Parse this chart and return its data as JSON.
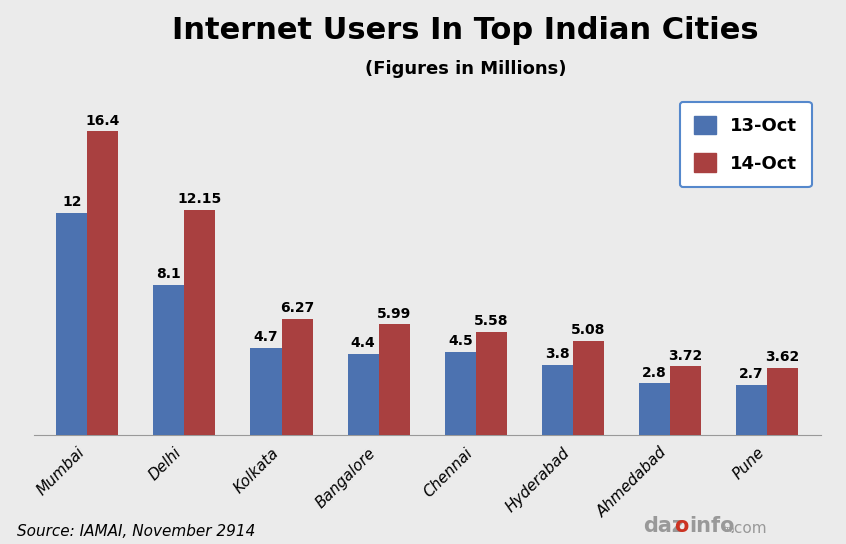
{
  "title": "Internet Users In Top Indian Cities",
  "subtitle": "(Figures in Millions)",
  "categories": [
    "Mumbai",
    "Delhi",
    "Kolkata",
    "Bangalore",
    "Chennai",
    "Hyderabad",
    "Ahmedabad",
    "Pune"
  ],
  "series_13oct": [
    12,
    8.1,
    4.7,
    4.4,
    4.5,
    3.8,
    2.8,
    2.7
  ],
  "series_14oct": [
    16.4,
    12.15,
    6.27,
    5.99,
    5.58,
    5.08,
    3.72,
    3.62
  ],
  "color_13oct": "#4C72B0",
  "color_14oct": "#A94040",
  "legend_13oct": "13-Oct",
  "legend_14oct": "14-Oct",
  "bg_color": "#EBEBEB",
  "source_text": "Source: IAMAI, November 2914",
  "bar_width": 0.32,
  "title_fontsize": 22,
  "subtitle_fontsize": 13,
  "label_fontsize": 10,
  "tick_fontsize": 11,
  "legend_fontsize": 13,
  "source_fontsize": 11,
  "ylim": [
    0,
    18.5
  ]
}
